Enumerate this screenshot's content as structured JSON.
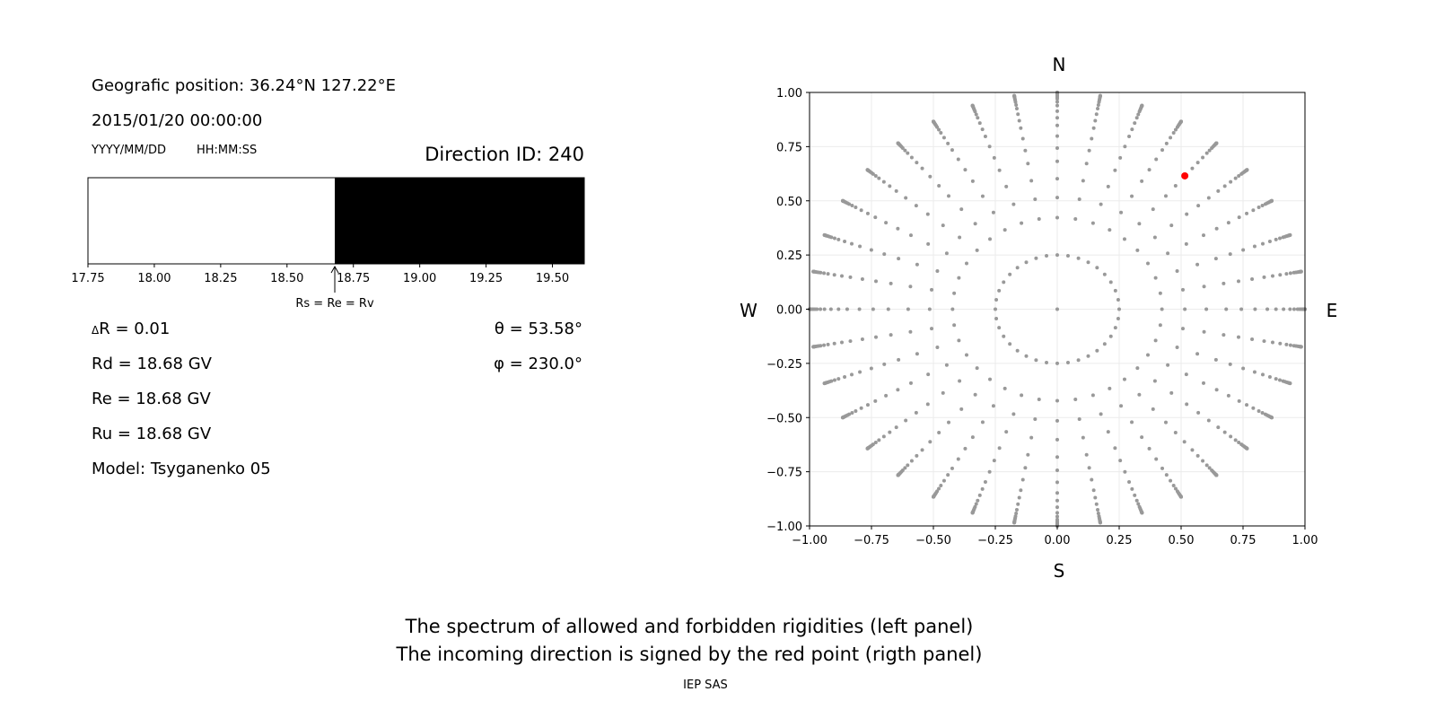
{
  "left_panel": {
    "position": "Geografic position: 36.24°N 127.22°E",
    "datetime": "2015/01/20 00:00:00",
    "date_format": "YYYY/MM/DD",
    "time_format": "HH:MM:SS",
    "direction_id": "Direction ID: 240",
    "delta_r_symbol": "Δ",
    "delta_r": "R = 0.01",
    "rd": "Rd = 18.68 GV",
    "re": "Re = 18.68 GV",
    "ru": "Ru = 18.68 GV",
    "model": "Model: Tsyganenko 05",
    "theta": "θ = 53.58°",
    "phi": "φ = 230.0°",
    "annotation": "Rs = Re = Rv"
  },
  "chart_data": [
    {
      "type": "bar",
      "description_role": "rigidity spectrum",
      "xlim": [
        17.75,
        19.62
      ],
      "xticks": [
        "17.75",
        "18.00",
        "18.25",
        "18.50",
        "18.75",
        "19.00",
        "19.25",
        "19.50"
      ],
      "allowed_color": "#ffffff",
      "forbidden_color": "#000000",
      "segments": [
        {
          "from": 17.75,
          "to": 18.68,
          "state": "allowed"
        },
        {
          "from": 18.68,
          "to": 19.62,
          "state": "forbidden"
        }
      ],
      "arrow_at": 18.68
    },
    {
      "type": "scatter",
      "xlim": [
        -1,
        1
      ],
      "ylim": [
        -1,
        1
      ],
      "grid": true,
      "xticks": [
        "−1.00",
        "−0.75",
        "−0.50",
        "−0.25",
        "0.00",
        "0.25",
        "0.50",
        "0.75",
        "1.00"
      ],
      "yticks": [
        "1.00",
        "0.75",
        "0.50",
        "0.25",
        "0.00",
        "−0.25",
        "−0.50",
        "−0.75",
        "−1.00"
      ],
      "compass": {
        "n": "N",
        "s": "S",
        "w": "W",
        "e": "E"
      },
      "point_color": "#999999",
      "highlight_color": "#ff0000",
      "ray_azimuth_step_deg": 10,
      "ray_zenith_deg": [
        25,
        31,
        37,
        43,
        48,
        53,
        58,
        62,
        66,
        70,
        73,
        76,
        78,
        80,
        82,
        84,
        85,
        86,
        87,
        88,
        89,
        90
      ],
      "inner_ring_radius": 0.25,
      "inner_ring_points": 36,
      "center_point": [
        0,
        0
      ],
      "highlight_point": [
        0.515,
        0.615
      ]
    }
  ],
  "footer": {
    "line1": "The spectrum of allowed and forbidden rigidities (left panel)",
    "line2": "The incoming direction is signed by the red point (rigth panel)",
    "credit": "IEP SAS"
  }
}
